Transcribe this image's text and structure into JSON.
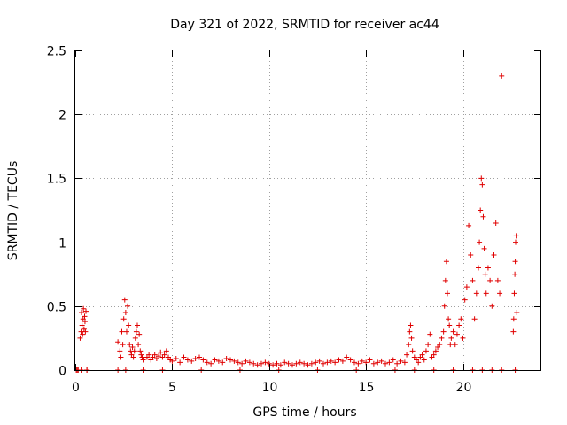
{
  "chart_data": {
    "type": "scatter",
    "title": "Day 321 of 2022, SRMTID for receiver ac44",
    "xlabel": "GPS time / hours",
    "ylabel": "SRMTID / TECUs",
    "xlim": [
      0,
      24
    ],
    "ylim": [
      0,
      2.5
    ],
    "xticks": [
      0,
      5,
      10,
      15,
      20
    ],
    "xtick_labels": [
      "0",
      "5",
      "10",
      "15",
      "20"
    ],
    "yticks": [
      0,
      0.5,
      1,
      1.5,
      2,
      2.5
    ],
    "ytick_labels": [
      "0",
      "0.5",
      "1",
      "1.5",
      "2",
      "2.5"
    ],
    "grid": true,
    "marker": "+",
    "color": "#e00000",
    "series": [
      {
        "name": "SRMTID",
        "x": [
          0.05,
          0.15,
          0.25,
          0.3,
          0.32,
          0.35,
          0.38,
          0.4,
          0.42,
          0.45,
          0.48,
          0.5,
          0.52,
          0.55,
          0.6,
          2.2,
          2.3,
          2.35,
          2.4,
          2.45,
          2.5,
          2.55,
          2.6,
          2.65,
          2.7,
          2.75,
          2.8,
          2.85,
          2.9,
          2.95,
          3.0,
          3.05,
          3.1,
          3.15,
          3.2,
          3.25,
          3.3,
          3.35,
          3.4,
          3.45,
          3.5,
          3.7,
          3.8,
          3.9,
          4.0,
          4.1,
          4.2,
          4.3,
          4.4,
          4.5,
          4.6,
          4.7,
          4.8,
          4.9,
          5.0,
          5.2,
          5.4,
          5.6,
          5.8,
          6.0,
          6.2,
          6.4,
          6.6,
          6.8,
          7.0,
          7.2,
          7.4,
          7.6,
          7.8,
          8.0,
          8.2,
          8.4,
          8.6,
          8.8,
          9.0,
          9.2,
          9.4,
          9.6,
          9.8,
          10.0,
          10.2,
          10.4,
          10.6,
          10.8,
          11.0,
          11.2,
          11.4,
          11.6,
          11.8,
          12.0,
          12.2,
          12.4,
          12.6,
          12.8,
          13.0,
          13.2,
          13.4,
          13.6,
          13.8,
          14.0,
          14.2,
          14.4,
          14.6,
          14.8,
          15.0,
          15.2,
          15.4,
          15.6,
          15.8,
          16.0,
          16.2,
          16.4,
          16.6,
          16.8,
          17.0,
          17.1,
          17.2,
          17.25,
          17.3,
          17.35,
          17.4,
          17.5,
          17.6,
          17.7,
          17.8,
          17.9,
          18.0,
          18.1,
          18.2,
          18.3,
          18.4,
          18.5,
          18.6,
          18.7,
          18.8,
          18.9,
          19.0,
          19.05,
          19.1,
          19.15,
          19.2,
          19.25,
          19.3,
          19.35,
          19.4,
          19.5,
          19.6,
          19.7,
          19.8,
          19.9,
          20.0,
          20.1,
          20.2,
          20.3,
          20.4,
          20.5,
          20.6,
          20.7,
          20.8,
          20.85,
          20.9,
          20.95,
          21.0,
          21.05,
          21.1,
          21.15,
          21.2,
          21.3,
          21.4,
          21.5,
          21.6,
          21.7,
          21.8,
          21.9,
          22.0,
          22.6,
          22.62,
          22.65,
          22.68,
          22.7,
          22.72,
          22.75,
          22.78,
          0.1,
          0.3,
          0.6,
          2.2,
          2.6,
          3.5,
          4.5,
          6.5,
          8.5,
          10.5,
          12.5,
          14.5,
          16.5,
          17.5,
          18.5,
          19.5,
          20.5,
          21.0,
          21.5,
          22.0,
          22.7
        ],
        "y": [
          0.0,
          0.0,
          0.25,
          0.3,
          0.45,
          0.35,
          0.28,
          0.4,
          0.48,
          0.32,
          0.42,
          0.38,
          0.3,
          0.46,
          0.0,
          0.22,
          0.15,
          0.1,
          0.3,
          0.2,
          0.4,
          0.55,
          0.45,
          0.3,
          0.5,
          0.35,
          0.2,
          0.15,
          0.12,
          0.18,
          0.1,
          0.15,
          0.25,
          0.3,
          0.35,
          0.2,
          0.28,
          0.15,
          0.12,
          0.1,
          0.08,
          0.1,
          0.12,
          0.08,
          0.1,
          0.12,
          0.09,
          0.11,
          0.14,
          0.1,
          0.12,
          0.15,
          0.1,
          0.08,
          0.07,
          0.09,
          0.06,
          0.1,
          0.08,
          0.07,
          0.09,
          0.1,
          0.08,
          0.06,
          0.05,
          0.08,
          0.07,
          0.06,
          0.09,
          0.08,
          0.07,
          0.06,
          0.05,
          0.07,
          0.06,
          0.05,
          0.04,
          0.05,
          0.06,
          0.05,
          0.04,
          0.05,
          0.04,
          0.06,
          0.05,
          0.04,
          0.05,
          0.06,
          0.05,
          0.04,
          0.05,
          0.06,
          0.07,
          0.05,
          0.06,
          0.07,
          0.06,
          0.08,
          0.07,
          0.1,
          0.08,
          0.06,
          0.05,
          0.07,
          0.06,
          0.08,
          0.05,
          0.06,
          0.07,
          0.05,
          0.06,
          0.08,
          0.05,
          0.07,
          0.06,
          0.12,
          0.2,
          0.3,
          0.35,
          0.25,
          0.15,
          0.1,
          0.08,
          0.06,
          0.1,
          0.12,
          0.08,
          0.15,
          0.2,
          0.28,
          0.1,
          0.12,
          0.15,
          0.18,
          0.2,
          0.25,
          0.3,
          0.5,
          0.7,
          0.85,
          0.6,
          0.4,
          0.35,
          0.2,
          0.25,
          0.3,
          0.2,
          0.28,
          0.35,
          0.4,
          0.25,
          0.55,
          0.65,
          1.13,
          0.9,
          0.7,
          0.4,
          0.6,
          0.8,
          1.0,
          1.25,
          1.5,
          1.45,
          1.2,
          0.95,
          0.75,
          0.6,
          0.8,
          0.7,
          0.5,
          0.9,
          1.15,
          0.7,
          0.6,
          2.3,
          0.3,
          0.4,
          0.6,
          0.75,
          0.85,
          1.0,
          1.05,
          0.45,
          0.0,
          0.0,
          0.0,
          0.0,
          0.0,
          0.0,
          0.0,
          0.0,
          0.0,
          0.0,
          0.0,
          0.0,
          0.0,
          0.0,
          0.0,
          0.0,
          0.0,
          0.0,
          0.0,
          0.0,
          0.0
        ]
      }
    ]
  }
}
